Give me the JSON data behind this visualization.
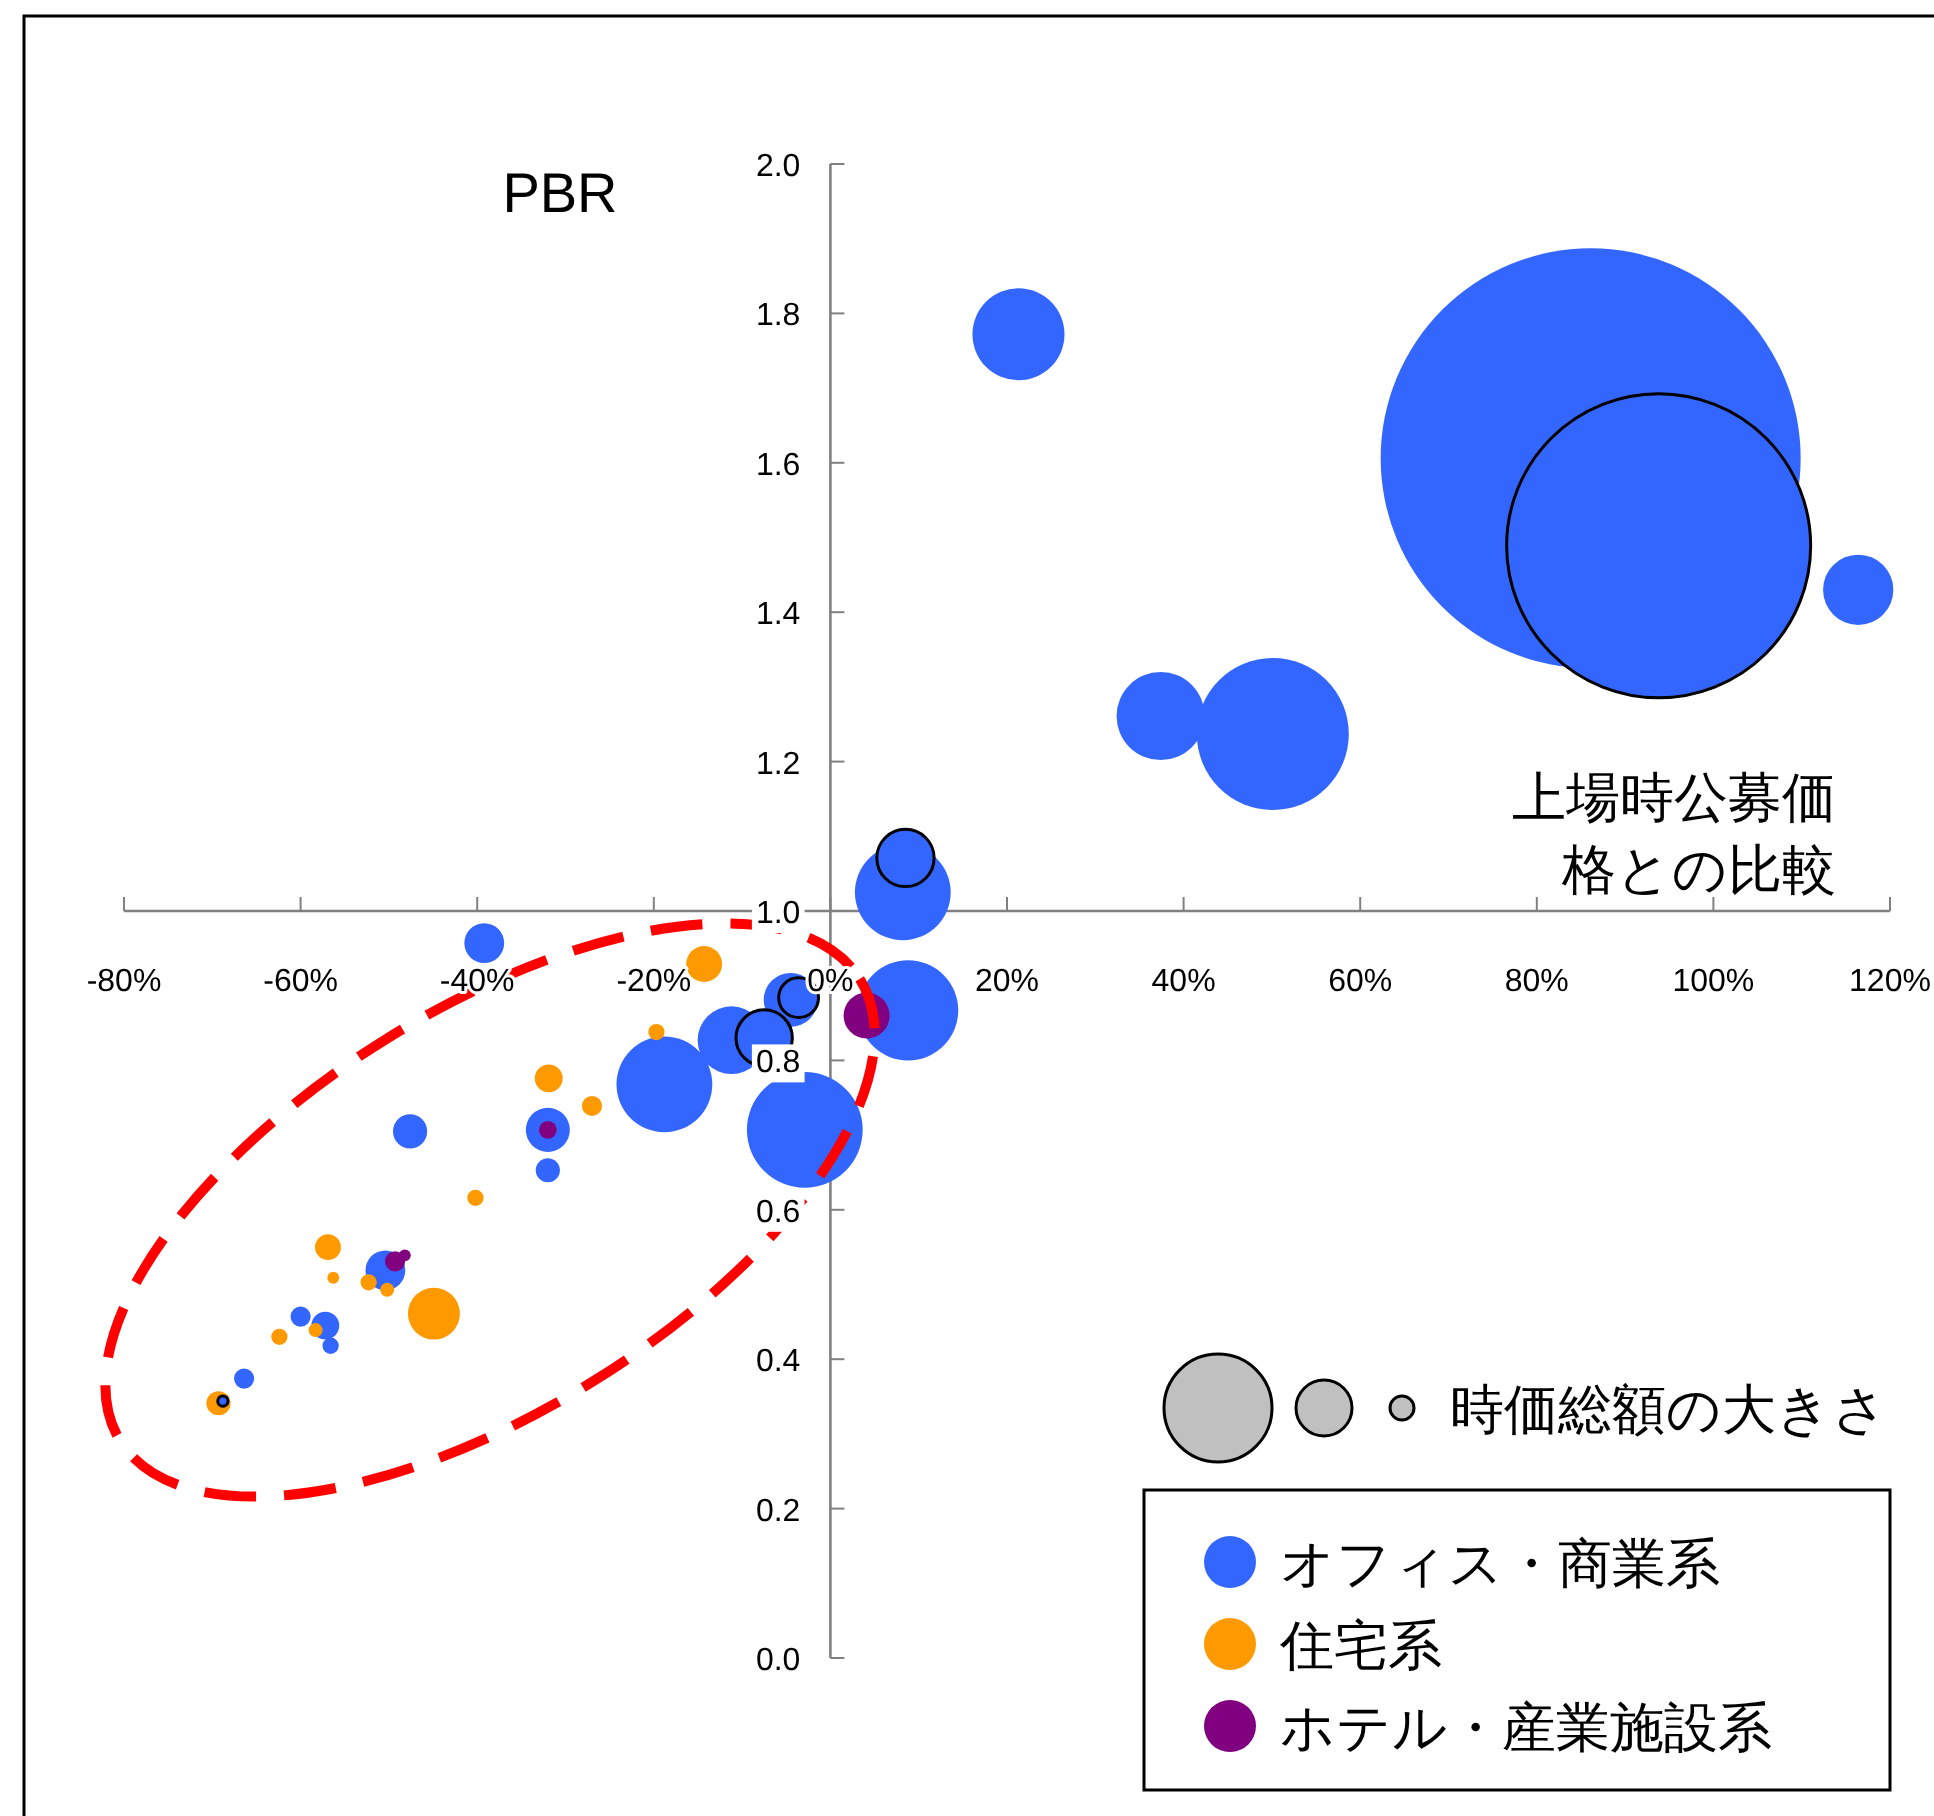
{
  "chart_data": {
    "type": "bubble",
    "ylabel": "PBR",
    "xlabel": "上場時公募価格との比較",
    "annotations": [
      "時価総額の大きさ"
    ],
    "xlim": [
      -80,
      120
    ],
    "ylim": [
      0,
      2
    ],
    "xticks": [
      {
        "value": -80,
        "label": "-80%"
      },
      {
        "value": -60,
        "label": "-60%"
      },
      {
        "value": -40,
        "label": "-40%"
      },
      {
        "value": -20,
        "label": "-20%"
      },
      {
        "value": 0,
        "label": "0%"
      },
      {
        "value": 20,
        "label": "20%"
      },
      {
        "value": 40,
        "label": "40%"
      },
      {
        "value": 60,
        "label": "60%"
      },
      {
        "value": 80,
        "label": "80%"
      },
      {
        "value": 100,
        "label": "100%"
      },
      {
        "value": 120,
        "label": "120%"
      }
    ],
    "yticks": [
      {
        "value": 0,
        "label": "0.0"
      },
      {
        "value": 0.2,
        "label": "0.2"
      },
      {
        "value": 0.4,
        "label": "0.4"
      },
      {
        "value": 0.6,
        "label": "0.6"
      },
      {
        "value": 0.8,
        "label": "0.8"
      },
      {
        "value": 1,
        "label": "1.0"
      },
      {
        "value": 1.2,
        "label": "1.2"
      },
      {
        "value": 1.4,
        "label": "1.4"
      },
      {
        "value": 1.6,
        "label": "1.6"
      },
      {
        "value": 1.8,
        "label": "1.8"
      },
      {
        "value": 2,
        "label": "2.0"
      }
    ],
    "legend": "bottom right",
    "series": [
      {
        "name": "オフィス・商業系",
        "color": "#3366ff",
        "x": [
          86.1,
          21.3,
          116.4,
          37.4,
          50.1,
          8.2,
          8.8,
          -2.9,
          -4.5,
          -11.2,
          -18.8,
          -39.2,
          -47.6,
          -32.0,
          -32.0,
          -50.4,
          -60.0,
          -57.2,
          -56.6,
          -66.4
        ],
        "values": [
          1.606,
          1.772,
          1.43,
          1.261,
          1.237,
          1.025,
          0.867,
          0.707,
          0.881,
          0.827,
          0.768,
          0.957,
          0.705,
          0.707,
          0.653,
          0.519,
          0.457,
          0.445,
          0.418,
          0.374
        ],
        "sizes": [
          1,
          0.048,
          0.028,
          0.044,
          0.131,
          0.052,
          0.057,
          0.076,
          0.0165,
          0.026,
          0.052,
          0.009,
          0.0066,
          0.011,
          0.0033,
          0.009,
          0.0023,
          0.0044,
          0.0015,
          0.0023
        ]
      },
      {
        "name": "住宅系",
        "color": "#ff9900",
        "x": [
          -14.3,
          -19.7,
          -31.9,
          -27.0,
          -40.2,
          -56.9,
          -56.3,
          -52.3,
          -50.2,
          -44.9,
          -58.3,
          -62.4,
          -69.3
        ],
        "values": [
          0.929,
          0.838,
          0.776,
          0.739,
          0.616,
          0.55,
          0.509,
          0.503,
          0.493,
          0.461,
          0.439,
          0.43,
          0.341
        ],
        "sizes": [
          0.0073,
          0.0015,
          0.0044,
          0.0023,
          0.0015,
          0.0038,
          0.0008,
          0.0015,
          0.0011,
          0.0153,
          0.0011,
          0.0015,
          0.0033
        ]
      },
      {
        "name": "ホテル・産業施設系",
        "color": "#800080",
        "x": [
          4.1,
          -32.0,
          -49.3,
          -48.2
        ],
        "values": [
          0.86,
          0.707,
          0.531,
          0.539
        ],
        "sizes": [
          0.012,
          0.0018,
          0.0023,
          0.0008
        ]
      },
      {
        "color": "#3366ff",
        "x": [
          93.8,
          8.5,
          -3.6,
          -7.5,
          -68.8
        ],
        "values": [
          1.489,
          1.071,
          0.884,
          0.83,
          0.344
        ],
        "sizes": [
          0.524,
          0.0186,
          0.009,
          0.018,
          0.0006
        ]
      }
    ]
  }
}
